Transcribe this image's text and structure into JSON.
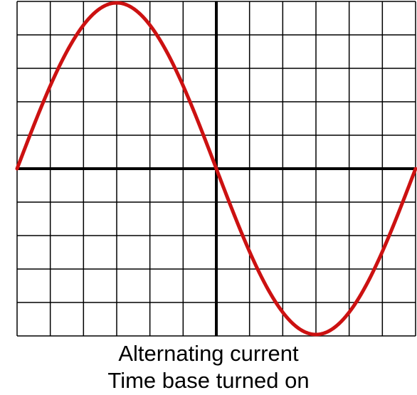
{
  "caption": {
    "line1": "Alternating current",
    "line2": "Time base turned on"
  },
  "grid": {
    "columns": 12,
    "rows": 10
  },
  "waveform": {
    "type": "sine",
    "cycles": 1,
    "color": "#cc1111"
  },
  "colors": {
    "grid_line": "#000000",
    "axis": "#000000",
    "background": "#ffffff"
  }
}
